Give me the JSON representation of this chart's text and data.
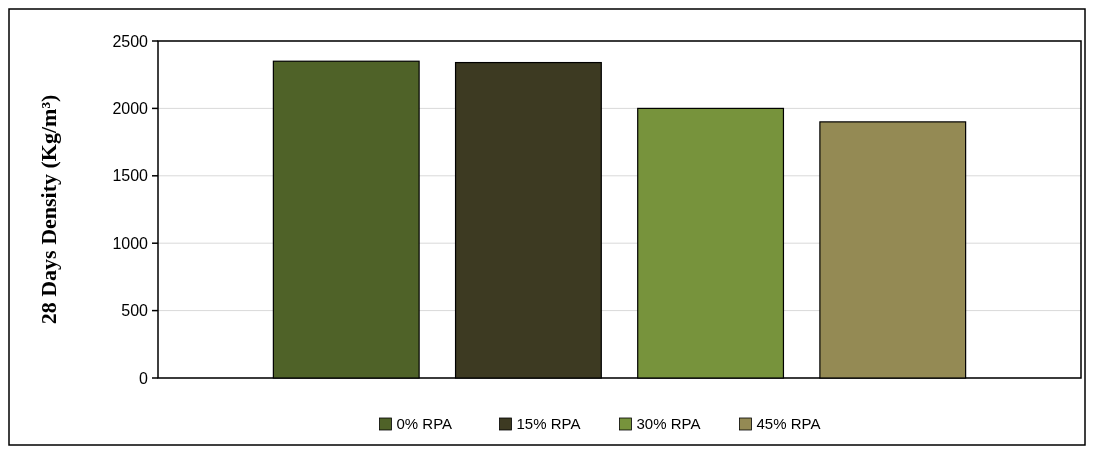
{
  "chart_data": {
    "type": "bar",
    "ylabel": "28 Days Density (Kg/m³)",
    "categories": [
      null
    ],
    "series": [
      {
        "name": "0% RPA",
        "color": "#4f6228",
        "values": [
          2350
        ]
      },
      {
        "name": "15% RPA",
        "color": "#3d3a22",
        "values": [
          2340
        ]
      },
      {
        "name": "30% RPA",
        "color": "#77933c",
        "values": [
          2000
        ]
      },
      {
        "name": "45% RPA",
        "color": "#948a54",
        "values": [
          1900
        ]
      }
    ],
    "ylim": [
      0,
      2500
    ],
    "yticks": [
      0,
      500,
      1000,
      1500,
      2000,
      2500
    ],
    "grid": "y",
    "legend": "bottom"
  }
}
